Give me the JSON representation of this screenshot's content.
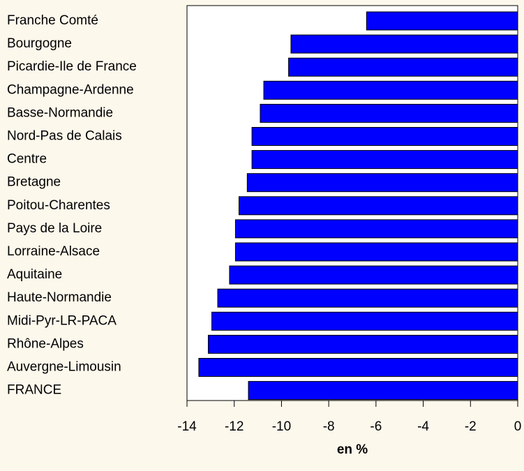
{
  "chart_data": {
    "type": "barh",
    "xlabel": "en %",
    "categories": [
      "Franche Comté",
      "Bourgogne",
      "Picardie-Ile de France",
      "Champagne-Ardenne",
      "Basse-Normandie",
      "Nord-Pas de Calais",
      "Centre",
      "Bretagne",
      "Poitou-Charentes",
      "Pays de la Loire",
      "Lorraine-Alsace",
      "Aquitaine",
      "Haute-Normandie",
      "Midi-Pyr-LR-PACA",
      "Rhône-Alpes",
      "Auvergne-Limousin",
      "FRANCE"
    ],
    "values": [
      -6.4,
      -9.6,
      -9.7,
      -10.75,
      -10.9,
      -11.25,
      -11.25,
      -11.45,
      -11.8,
      -11.95,
      -11.95,
      -12.2,
      -12.7,
      -12.95,
      -13.1,
      -13.5,
      -11.4
    ],
    "color": "#0000ff",
    "xlim": [
      -14,
      0
    ],
    "xticks": [
      -14,
      -12,
      -10,
      -8,
      -6,
      -4,
      -2,
      0
    ]
  }
}
